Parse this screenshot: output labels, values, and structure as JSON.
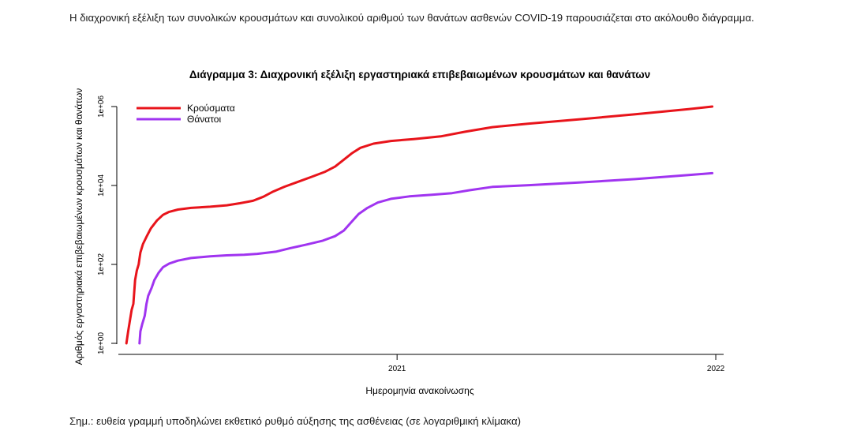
{
  "intro_text": "Η διαχρονική εξέλιξη των συνολικών κρουσμάτων και συνολικού αριθμού των θανάτων ασθενών COVID-19 παρουσιάζεται στο ακόλουθο διάγραμμα.",
  "note_text": "Σημ.: ευθεία γραμμή υποδηλώνει εκθετικό ρυθμό αύξησης της ασθένειας (σε λογαριθμική κλίμακα)",
  "chart_data": {
    "type": "line",
    "title": "Διάγραμμα 3: Διαχρονική εξέλιξη εργαστηριακά επιβεβαιωμένων κρουσμάτων και θανάτων",
    "xlabel": "Ημερομηνία ανακοίνωσης",
    "ylabel": "Αριθμός εργαστηριακά επιβεβαιωμένων κρουσμάτων και θανάτων",
    "y_scale": "log10",
    "ylim": [
      1,
      1000000
    ],
    "y_ticks": [
      {
        "value": 1,
        "label": "1e+00"
      },
      {
        "value": 100,
        "label": "1e+02"
      },
      {
        "value": 10000,
        "label": "1e+04"
      },
      {
        "value": 1000000,
        "label": "1e+06"
      }
    ],
    "xlim": [
      "2020-02-15",
      "2022-01-10"
    ],
    "x_ticks": [
      {
        "value": "2021-01-01",
        "label": "2021"
      },
      {
        "value": "2022-01-01",
        "label": "2022"
      }
    ],
    "legend_position": "top-left",
    "grid": false,
    "series": [
      {
        "name": "Κρούσματα",
        "color": "#e8141b",
        "points": [
          [
            "2020-02-26",
            1
          ],
          [
            "2020-02-28",
            2
          ],
          [
            "2020-03-03",
            7
          ],
          [
            "2020-03-05",
            10
          ],
          [
            "2020-03-07",
            40
          ],
          [
            "2020-03-09",
            70
          ],
          [
            "2020-03-11",
            100
          ],
          [
            "2020-03-13",
            200
          ],
          [
            "2020-03-16",
            330
          ],
          [
            "2020-03-20",
            500
          ],
          [
            "2020-03-25",
            820
          ],
          [
            "2020-04-01",
            1300
          ],
          [
            "2020-04-08",
            1800
          ],
          [
            "2020-04-15",
            2150
          ],
          [
            "2020-04-25",
            2450
          ],
          [
            "2020-05-10",
            2700
          ],
          [
            "2020-06-01",
            2900
          ],
          [
            "2020-06-20",
            3150
          ],
          [
            "2020-07-05",
            3550
          ],
          [
            "2020-07-20",
            4100
          ],
          [
            "2020-08-01",
            5200
          ],
          [
            "2020-08-12",
            7000
          ],
          [
            "2020-08-25",
            9300
          ],
          [
            "2020-09-10",
            12500
          ],
          [
            "2020-09-25",
            16500
          ],
          [
            "2020-10-10",
            22000
          ],
          [
            "2020-10-22",
            30000
          ],
          [
            "2020-11-01",
            45000
          ],
          [
            "2020-11-10",
            65000
          ],
          [
            "2020-11-20",
            90000
          ],
          [
            "2020-12-05",
            115000
          ],
          [
            "2020-12-25",
            134000
          ],
          [
            "2021-01-20",
            150000
          ],
          [
            "2021-02-20",
            175000
          ],
          [
            "2021-03-20",
            230000
          ],
          [
            "2021-04-20",
            300000
          ],
          [
            "2021-06-01",
            370000
          ],
          [
            "2021-08-01",
            480000
          ],
          [
            "2021-10-01",
            640000
          ],
          [
            "2021-12-01",
            860000
          ],
          [
            "2021-12-28",
            1000000
          ]
        ]
      },
      {
        "name": "Θάνατοι",
        "color": "#a034f0",
        "points": [
          [
            "2020-03-12",
            1
          ],
          [
            "2020-03-13",
            2
          ],
          [
            "2020-03-15",
            3
          ],
          [
            "2020-03-18",
            5
          ],
          [
            "2020-03-20",
            10
          ],
          [
            "2020-03-22",
            16
          ],
          [
            "2020-03-26",
            26
          ],
          [
            "2020-03-29",
            40
          ],
          [
            "2020-04-03",
            62
          ],
          [
            "2020-04-08",
            85
          ],
          [
            "2020-04-15",
            105
          ],
          [
            "2020-04-25",
            125
          ],
          [
            "2020-05-10",
            145
          ],
          [
            "2020-06-01",
            160
          ],
          [
            "2020-06-20",
            170
          ],
          [
            "2020-07-10",
            175
          ],
          [
            "2020-07-25",
            185
          ],
          [
            "2020-08-15",
            210
          ],
          [
            "2020-09-01",
            260
          ],
          [
            "2020-09-20",
            320
          ],
          [
            "2020-10-08",
            400
          ],
          [
            "2020-10-22",
            520
          ],
          [
            "2020-11-01",
            720
          ],
          [
            "2020-11-10",
            1200
          ],
          [
            "2020-11-18",
            1900
          ],
          [
            "2020-11-28",
            2700
          ],
          [
            "2020-12-10",
            3700
          ],
          [
            "2020-12-25",
            4600
          ],
          [
            "2021-01-15",
            5300
          ],
          [
            "2021-02-10",
            5800
          ],
          [
            "2021-03-05",
            6400
          ],
          [
            "2021-03-25",
            7600
          ],
          [
            "2021-04-20",
            9200
          ],
          [
            "2021-06-01",
            10200
          ],
          [
            "2021-08-01",
            12000
          ],
          [
            "2021-10-01",
            14500
          ],
          [
            "2021-12-01",
            18400
          ],
          [
            "2021-12-28",
            20500
          ]
        ]
      }
    ]
  }
}
